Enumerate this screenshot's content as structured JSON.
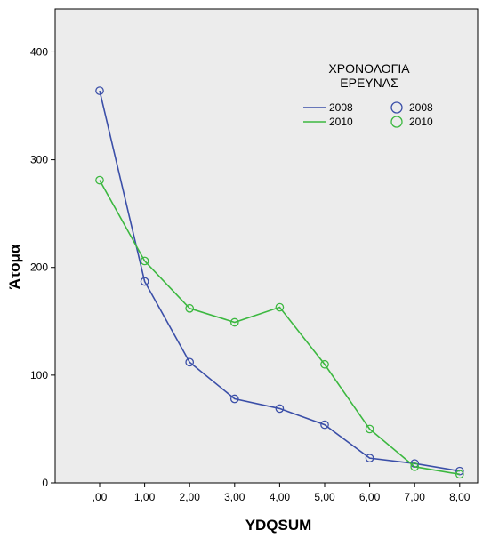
{
  "chart_data": {
    "type": "line",
    "xlabel": "YDQSUM",
    "ylabel": "Άτομα",
    "categories": [
      ",00",
      "1,00",
      "2,00",
      "3,00",
      "4,00",
      "5,00",
      "6,00",
      "7,00",
      "8,00"
    ],
    "y_ticks": [
      "0",
      "100",
      "200",
      "300",
      "400"
    ],
    "ylim": [
      0,
      440
    ],
    "grid": false,
    "legend_position": "top-right",
    "legend_title": "ΧΡΟΝΟΛΟΓΙΑ\nΕΡΕΥΝΑΣ",
    "series": [
      {
        "name": "2008",
        "color": "#3b4fa8",
        "values": [
          364,
          187,
          112,
          78,
          69,
          54,
          23,
          18,
          11
        ]
      },
      {
        "name": "2010",
        "color": "#3cb840",
        "values": [
          281,
          206,
          162,
          149,
          163,
          110,
          50,
          15,
          8
        ]
      }
    ],
    "colors": {
      "plot_background": "#ececec",
      "axis": "#000000"
    }
  }
}
